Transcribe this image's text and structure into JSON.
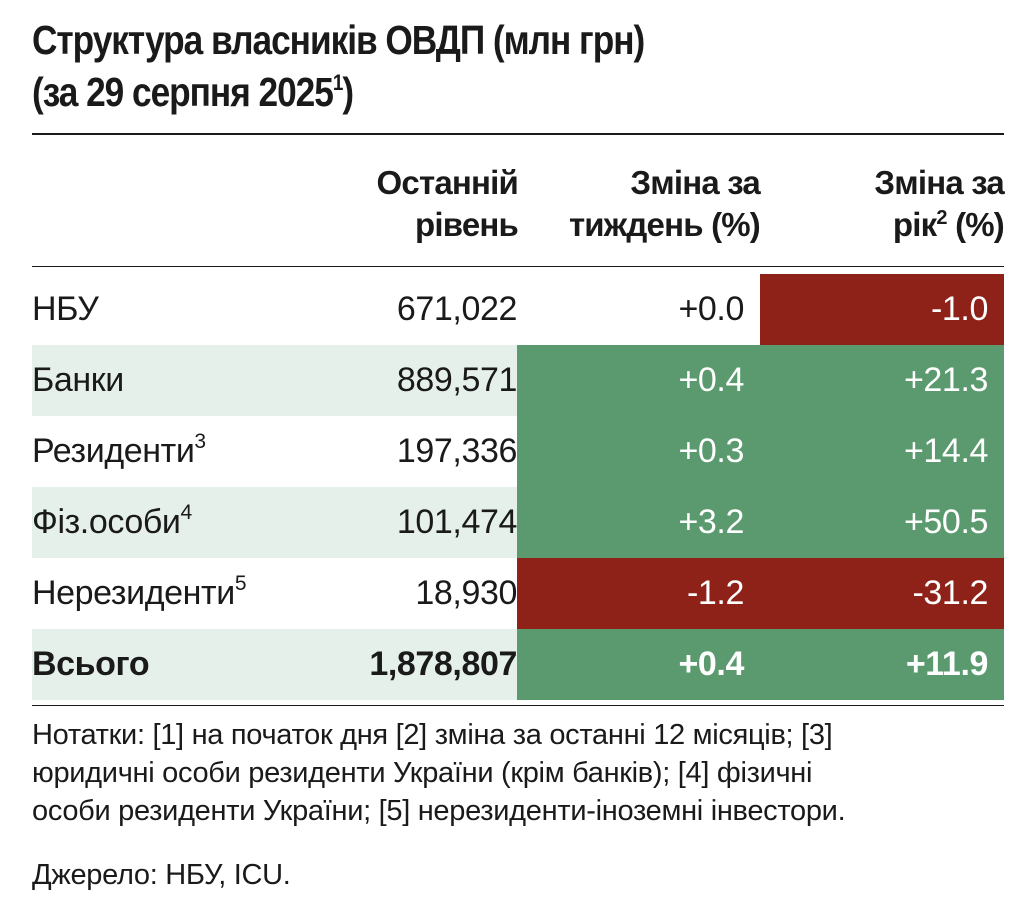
{
  "title": {
    "line1": "Структура власників ОВДП (млн грн)",
    "line2": "(за 29 серпня 2025",
    "line2_sup": "1",
    "line2_end": ")"
  },
  "headers": {
    "last_level": [
      "Останній",
      "рівень"
    ],
    "week_change": [
      "Зміна за",
      "тиждень (%)"
    ],
    "year_change_l1": "Зміна за",
    "year_change_l2a": "рік",
    "year_change_sup": "2",
    "year_change_l2b": " (%)"
  },
  "rows": [
    {
      "label": "НБУ",
      "sup": "",
      "level": "671,022",
      "week": "+0.0",
      "year": "-1.0",
      "week_status": "neutral",
      "year_status": "neg"
    },
    {
      "label": "Банки",
      "sup": "",
      "level": "889,571",
      "week": "+0.4",
      "year": "+21.3",
      "week_status": "pos",
      "year_status": "pos"
    },
    {
      "label": "Резиденти",
      "sup": "3",
      "level": "197,336",
      "week": "+0.3",
      "year": "+14.4",
      "week_status": "pos",
      "year_status": "pos"
    },
    {
      "label": "Фіз.особи",
      "sup": "4",
      "level": "101,474",
      "week": "+3.2",
      "year": "+50.5",
      "week_status": "pos",
      "year_status": "pos"
    },
    {
      "label": "Нерезиденти",
      "sup": "5",
      "level": "18,930",
      "week": "-1.2",
      "year": "-31.2",
      "week_status": "neg",
      "year_status": "neg"
    },
    {
      "label": "Всього",
      "sup": "",
      "level": "1,878,807",
      "week": "+0.4",
      "year": "+11.9",
      "week_status": "pos",
      "year_status": "pos",
      "bold": true
    }
  ],
  "notes": [
    "Нотатки: [1] на початок дня [2] зміна за останні 12 місяців; [3]",
    "юридичні особи  резиденти України (крім банків); [4] фізичні",
    "особи резиденти України; [5] нерезиденти-іноземні інвестори."
  ],
  "source": "Джерело: НБУ, ICU.",
  "colors": {
    "positive": "#5a9a6e",
    "negative": "#8e2219",
    "row_shade": "#e6f0eb",
    "text": "#1a1a1a"
  }
}
